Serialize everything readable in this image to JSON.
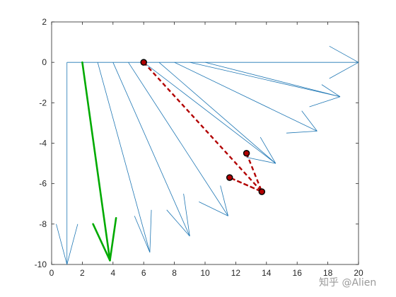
{
  "chart_data": {
    "type": "line",
    "xlim": [
      0,
      20
    ],
    "ylim": [
      -10,
      2
    ],
    "x_ticks": [
      0,
      2,
      4,
      6,
      8,
      10,
      12,
      14,
      16,
      18,
      20
    ],
    "y_ticks": [
      2,
      0,
      -2,
      -4,
      -6,
      -8,
      -10
    ],
    "grid": false,
    "colors": {
      "fan_lines": "#1f77b4",
      "green_arrow": "#00aa00",
      "dashed_path": "#b20000",
      "markers_edge": "#000000",
      "axes": "#262626"
    },
    "fan_origins_x": [
      1,
      2,
      3,
      4,
      5,
      6,
      7,
      8,
      9,
      10
    ],
    "fan_lines": [
      {
        "from": [
          1,
          0
        ],
        "to": [
          1,
          -10
        ],
        "head": [
          [
            0.3,
            -8
          ],
          [
            1.7,
            -8
          ]
        ]
      },
      {
        "from": [
          3,
          0
        ],
        "to": [
          6.4,
          -9.4
        ],
        "head": [
          [
            5.4,
            -7.6
          ],
          [
            6.5,
            -7.3
          ]
        ]
      },
      {
        "from": [
          4,
          0
        ],
        "to": [
          9,
          -8.6
        ],
        "head": [
          [
            7.5,
            -7.3
          ],
          [
            8.6,
            -6.5
          ]
        ]
      },
      {
        "from": [
          5,
          0
        ],
        "to": [
          11.5,
          -7.6
        ],
        "head": [
          [
            9.6,
            -6.9
          ],
          [
            11,
            -6.1
          ]
        ]
      },
      {
        "from": [
          7,
          0
        ],
        "to": [
          14.6,
          -5
        ],
        "head": [
          [
            12.7,
            -4.7
          ],
          [
            13.6,
            -3.7
          ]
        ]
      },
      {
        "from": [
          8,
          0
        ],
        "to": [
          17.3,
          -3.4
        ],
        "head": [
          [
            15.3,
            -3.5
          ],
          [
            16.3,
            -2.4
          ]
        ]
      },
      {
        "from": [
          9,
          0
        ],
        "to": [
          18.8,
          -1.7
        ],
        "head": [
          [
            16.8,
            -2.2
          ],
          [
            17.6,
            -1.1
          ]
        ]
      },
      {
        "from": [
          1,
          0
        ],
        "to": [
          20,
          0
        ],
        "head": [
          [
            18.1,
            0.8
          ],
          [
            18.1,
            -0.8
          ]
        ]
      }
    ],
    "green_arrow": {
      "from": [
        2,
        0
      ],
      "to": [
        3.8,
        -9.8
      ],
      "head": [
        [
          2.7,
          -8
        ],
        [
          4.2,
          -7.7
        ]
      ]
    },
    "dashed_path": [
      [
        6,
        0
      ],
      [
        13.7,
        -6.4
      ],
      [
        11.6,
        -5.7
      ],
      [
        13.7,
        -6.4
      ],
      [
        12.7,
        -4.5
      ]
    ],
    "markers": [
      [
        6,
        0
      ],
      [
        12.7,
        -4.5
      ],
      [
        11.6,
        -5.7
      ],
      [
        13.7,
        -6.4
      ]
    ],
    "watermark": "知乎 @Alien"
  }
}
